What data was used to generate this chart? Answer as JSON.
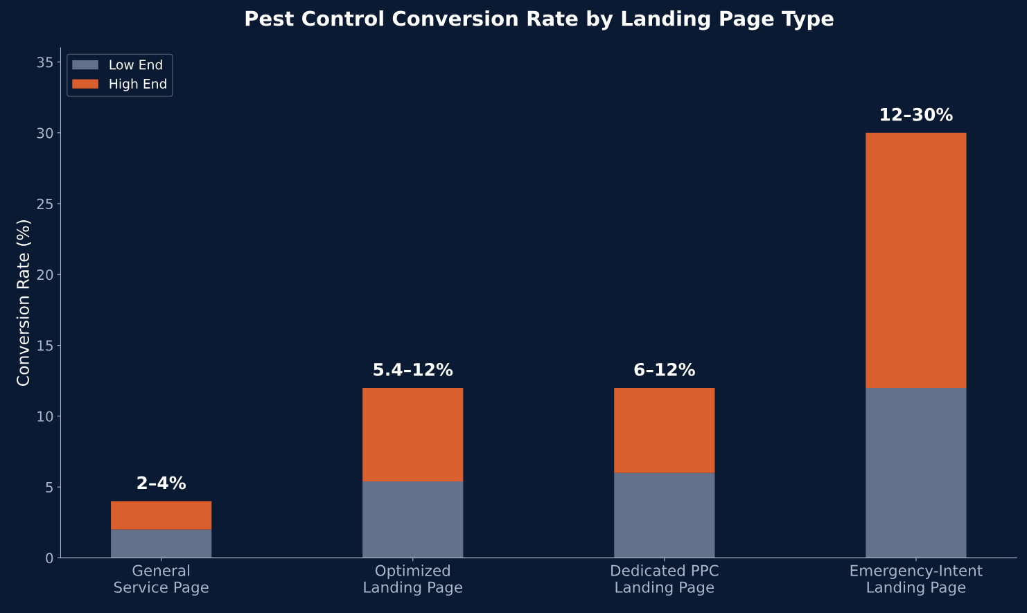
{
  "chart_data": {
    "type": "bar",
    "title": "Pest Control Conversion Rate by Landing Page Type",
    "ylabel": "Conversion Rate (%)",
    "categories": [
      "General\nService Page",
      "Optimized\nLanding Page",
      "Dedicated PPC\nLanding Page",
      "Emergency-Intent\nLanding Page"
    ],
    "stacked": true,
    "series": [
      {
        "name": "Low End",
        "color": "#64718a",
        "values": [
          2,
          5.4,
          6,
          12
        ]
      },
      {
        "name": "High End",
        "color": "#d95f2e",
        "values": [
          2,
          6.6,
          6,
          18
        ]
      }
    ],
    "totals": [
      "2–4%",
      "5.4–12%",
      "6–12%",
      "12–30%"
    ],
    "ylim": [
      0,
      36
    ],
    "yticks": [
      0,
      5,
      10,
      15,
      20,
      25,
      30,
      35
    ],
    "grid": false,
    "legend": "top left"
  }
}
